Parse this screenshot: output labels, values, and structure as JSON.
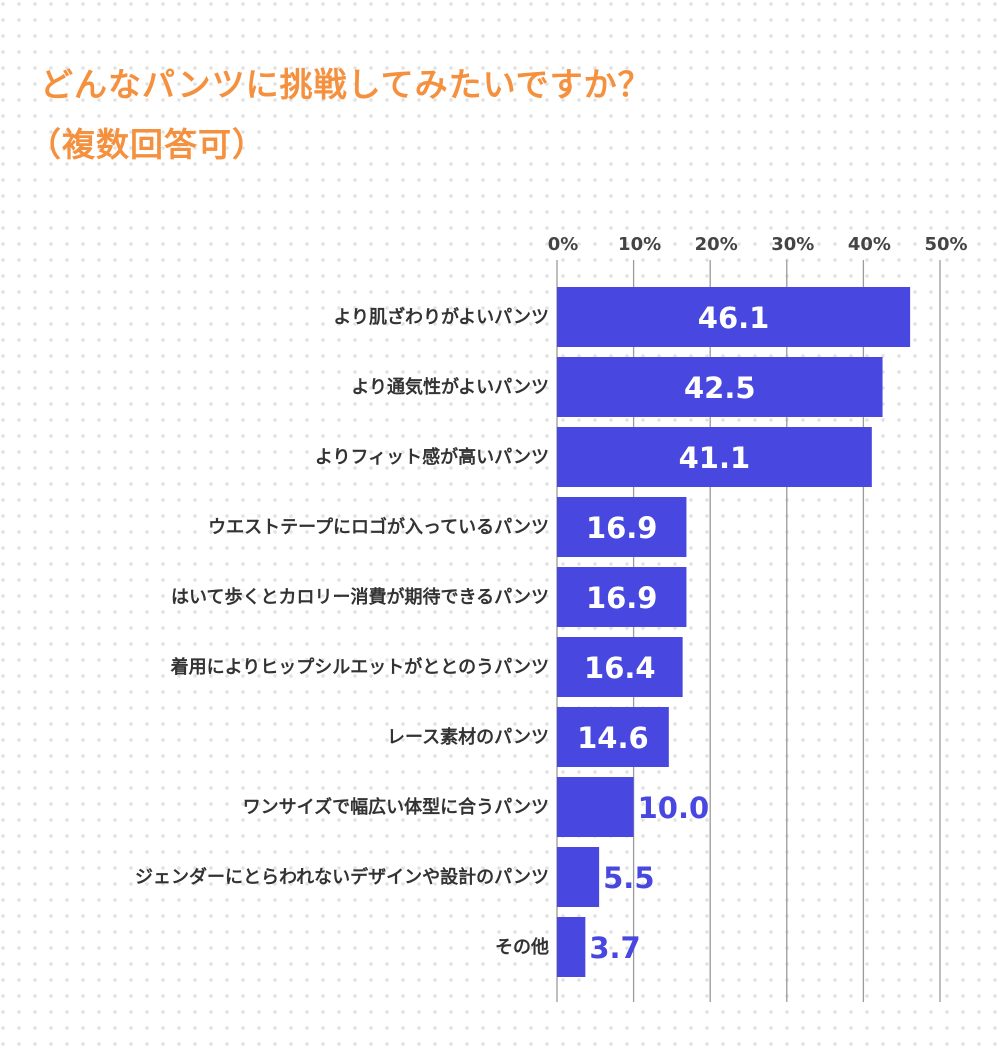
{
  "title": "どんなパンツに挑戦してみたいですか？",
  "subtitle": "（複数回答可）",
  "colors": {
    "title": "#f5913e",
    "bar": "#4848e0",
    "value_inside": "#ffffff",
    "value_outside": "#4848e0",
    "grid": "#9a9a9a"
  },
  "chart_data": {
    "type": "bar",
    "orientation": "horizontal",
    "title": "どんなパンツに挑戦してみたいですか？（複数回答可）",
    "categories": [
      "より肌ざわりがよいパンツ",
      "より通気性がよいパンツ",
      "よりフィット感が高いパンツ",
      "ウエストテープにロゴが入っているパンツ",
      "はいて歩くとカロリー消費が期待できるパンツ",
      "着用によりヒップシルエットがととのうパンツ",
      "レース素材のパンツ",
      "ワンサイズで幅広い体型に合うパンツ",
      "ジェンダーにとらわれないデザインや設計のパンツ",
      "その他"
    ],
    "values": [
      46.1,
      42.5,
      41.1,
      16.9,
      16.9,
      16.4,
      14.6,
      10.0,
      5.5,
      3.7
    ],
    "value_labels": [
      "46.1",
      "42.5",
      "41.1",
      "16.9",
      "16.9",
      "16.4",
      "14.6",
      "10.0",
      "5.5",
      "3.7"
    ],
    "xlim": [
      0,
      50
    ],
    "x_ticks": [
      "0%",
      "10%",
      "20%",
      "30%",
      "40%",
      "50%"
    ],
    "x_tick_values": [
      0,
      10,
      20,
      30,
      40,
      50
    ],
    "x_axis_position": "top",
    "grid": true,
    "legend": "none"
  }
}
